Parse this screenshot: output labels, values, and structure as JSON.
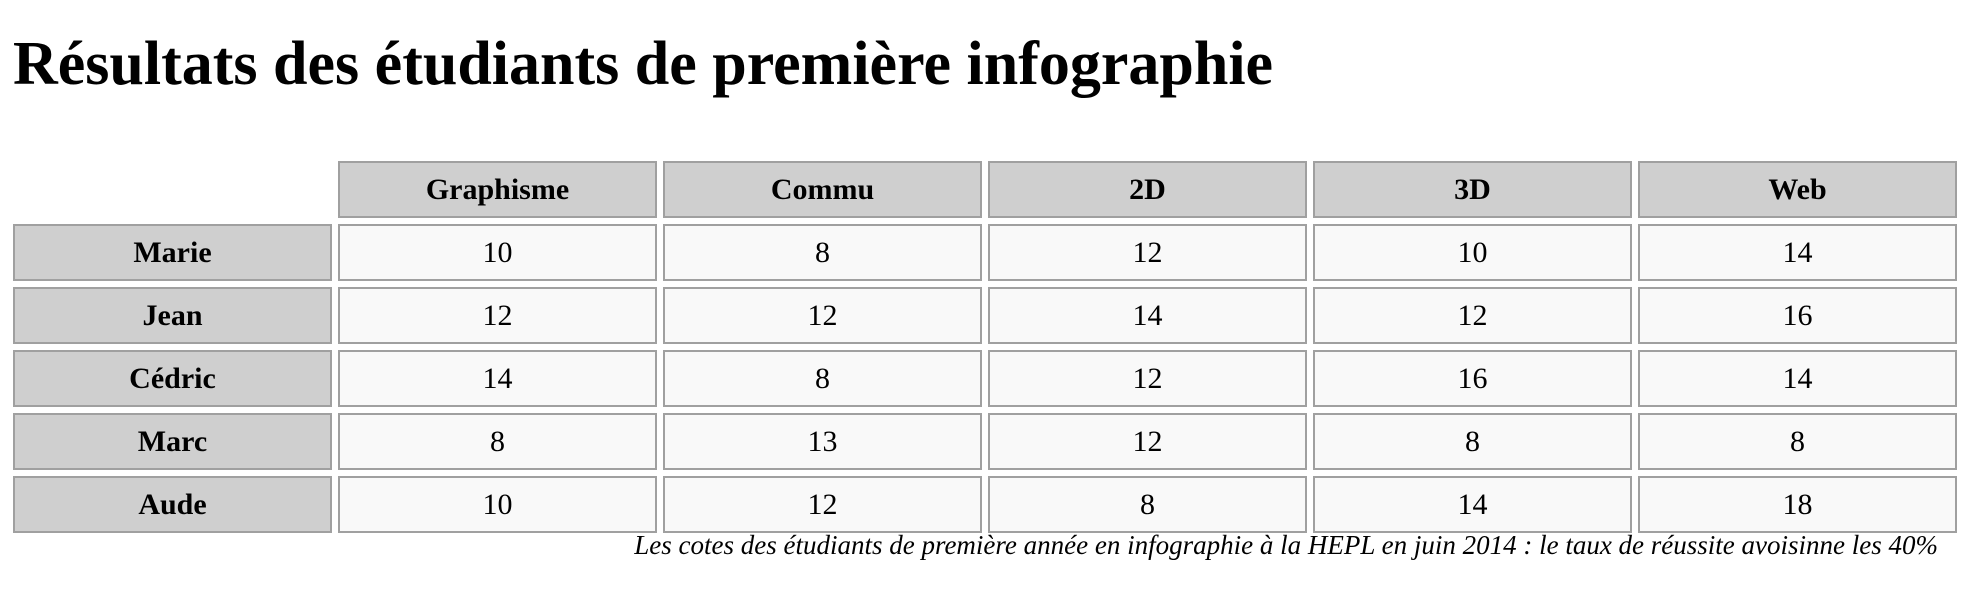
{
  "title": "Résultats des étudiants de première infographie",
  "columns": [
    "Graphisme",
    "Commu",
    "2D",
    "3D",
    "Web"
  ],
  "rows": [
    {
      "name": "Marie",
      "values": [
        "10",
        "8",
        "12",
        "10",
        "14"
      ]
    },
    {
      "name": "Jean",
      "values": [
        "12",
        "12",
        "14",
        "12",
        "16"
      ]
    },
    {
      "name": "Cédric",
      "values": [
        "14",
        "8",
        "12",
        "16",
        "14"
      ]
    },
    {
      "name": "Marc",
      "values": [
        "8",
        "13",
        "12",
        "8",
        "8"
      ]
    },
    {
      "name": "Aude",
      "values": [
        "10",
        "12",
        "8",
        "14",
        "18"
      ]
    }
  ],
  "caption": "Les cotes des étudiants de première année en infographie à la HEPL en juin 2014 : le taux de réussite avoisinne les 40%",
  "colors": {
    "header_background": "#cfcfcf",
    "cell_background": "#f9f9f9",
    "border": "#a0a0a0"
  }
}
